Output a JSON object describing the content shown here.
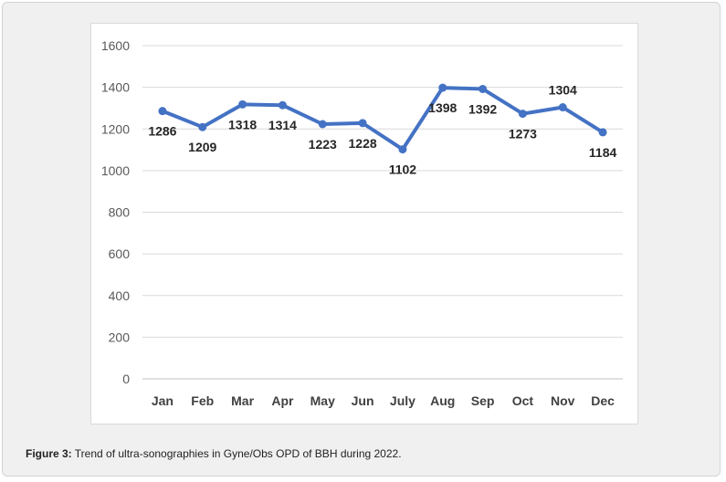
{
  "figure": {
    "caption_prefix": "Figure 3:",
    "caption_text": " Trend of ultra-sonographies in Gyne/Obs OPD of BBH during 2022."
  },
  "chart_data": {
    "type": "line",
    "categories": [
      "Jan",
      "Feb",
      "Mar",
      "Apr",
      "May",
      "Jun",
      "July",
      "Aug",
      "Sep",
      "Oct",
      "Nov",
      "Dec"
    ],
    "series": [
      {
        "values": [
          1286,
          1209,
          1318,
          1314,
          1223,
          1228,
          1102,
          1398,
          1392,
          1273,
          1304,
          1184
        ]
      }
    ],
    "ylim": [
      0,
      1600
    ],
    "yticks": [
      0,
      200,
      400,
      600,
      800,
      1000,
      1200,
      1400,
      1600
    ],
    "grid": true,
    "legend": "none",
    "line_color": "#4472c4",
    "data_labels": true
  }
}
